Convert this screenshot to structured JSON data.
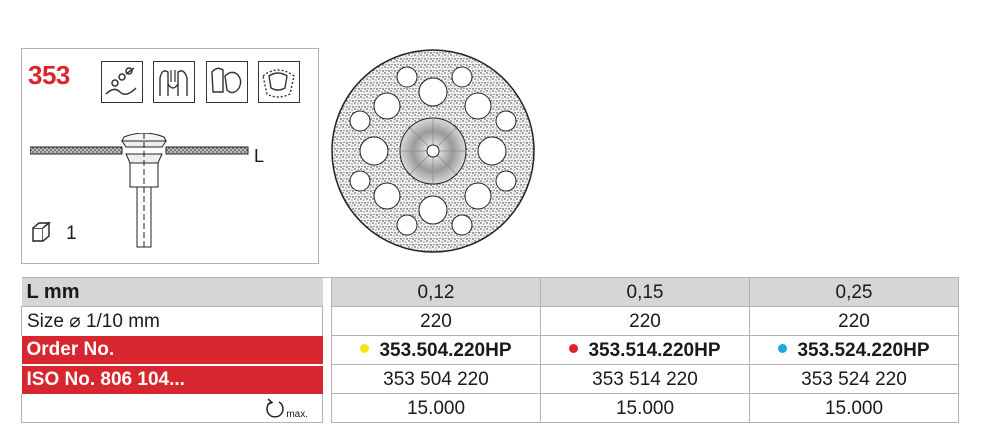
{
  "product": {
    "number": "353",
    "length_label": "L",
    "pack_quantity": "1",
    "icons": [
      "orthodontics-icon",
      "crown-prep-icon",
      "model-icon",
      "denture-icon"
    ]
  },
  "table": {
    "rows": [
      {
        "label": "L mm",
        "values": [
          "0,12",
          "0,15",
          "0,25"
        ]
      },
      {
        "label": "Size ⌀ 1/10 mm",
        "values": [
          "220",
          "220",
          "220"
        ]
      },
      {
        "label": "Order No.",
        "values": [
          "353.504.220HP",
          "353.514.220HP",
          "353.524.220HP"
        ]
      },
      {
        "label": "ISO No. 806 104...",
        "values": [
          "353 504 220",
          "353 514 220",
          "353 524 220"
        ]
      },
      {
        "label_suffix": "max.",
        "values": [
          "15.000",
          "15.000",
          "15.000"
        ]
      }
    ],
    "order_dot_colors": [
      "#f5e41c",
      "#e2202c",
      "#1fa8df"
    ]
  },
  "colors": {
    "brand_red": "#d8262e",
    "header_gray": "#d6d6d6"
  }
}
